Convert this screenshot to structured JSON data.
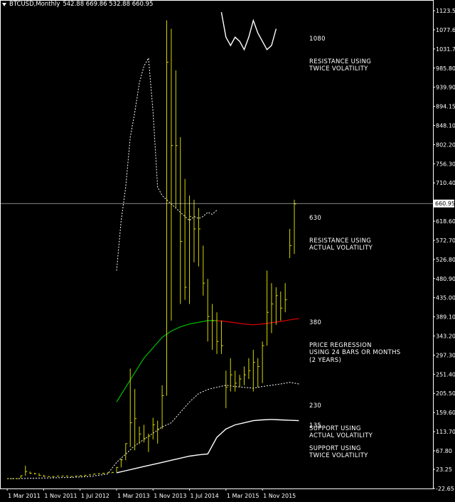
{
  "header": {
    "symbol": "BTCUSD,Monthly",
    "ohlc": "542.88 669.86 532.88 660.95"
  },
  "annotations": [
    {
      "value": "1080",
      "text": "RESISTANCE USING\nTWICE VOLATILITY"
    },
    {
      "value": "630",
      "text": "RESISTANCE USING\nACTUAL VOLATILITY"
    },
    {
      "value": "380",
      "text": "PRICE REGRESSION\nUSING 24 BARS OR MONTHS\n(2 YEARS)"
    },
    {
      "value": "230",
      "text": "SUPPORT USING\nACTUAL VOLATILITY"
    },
    {
      "value": "135",
      "text": "SUPPORT USING\nTWICE VOLATILITY"
    }
  ],
  "colors": {
    "background": "#000000",
    "bars": "#d6d600",
    "dotted_band": "#ffffff",
    "outer_band": "#ffffff",
    "regression_green": "#00c000",
    "regression_red": "#e00000",
    "price_line": "#ffffff"
  },
  "chart_data": {
    "type": "ohlc",
    "y_ticks": [
      "1123.55",
      "1077.60",
      "1031.70",
      "985.80",
      "939.90",
      "894.15",
      "848.10",
      "802.20",
      "756.30",
      "710.40",
      "618.60",
      "572.70",
      "526.80",
      "480.90",
      "435.00",
      "389.10",
      "343.20",
      "297.30",
      "251.40",
      "205.50",
      "159.60",
      "113.70",
      "67.80",
      "23.25",
      "-22.65"
    ],
    "x_ticks": [
      "1 Mar 2011",
      "1 Nov 2011",
      "1 Jul 2012",
      "1 Mar 2013",
      "1 Nov 2013",
      "1 Jul 2014",
      "1 Mar 2015",
      "1 Nov 2015"
    ],
    "ylim": [
      -22.65,
      1123.55
    ],
    "xlim": [
      -0.8,
      63.0
    ],
    "current_price": "660.95",
    "bars": [
      [
        0,
        1,
        1,
        1
      ],
      [
        1,
        1,
        1,
        1
      ],
      [
        2,
        2,
        1,
        1
      ],
      [
        3,
        9,
        2,
        8
      ],
      [
        4,
        32,
        8,
        18
      ],
      [
        5,
        18,
        12,
        14
      ],
      [
        6,
        15,
        11,
        13
      ],
      [
        7,
        14,
        7,
        9
      ],
      [
        8,
        10,
        5,
        7
      ],
      [
        9,
        7,
        5,
        6
      ],
      [
        10,
        7,
        4,
        6
      ],
      [
        11,
        8,
        6,
        7
      ],
      [
        12,
        8,
        6,
        7
      ],
      [
        13,
        8,
        6,
        7
      ],
      [
        14,
        7,
        5,
        6
      ],
      [
        15,
        8,
        6,
        7
      ],
      [
        16,
        9,
        6,
        8
      ],
      [
        17,
        10,
        7,
        9
      ],
      [
        18,
        11,
        9,
        10
      ],
      [
        19,
        13,
        10,
        12
      ],
      [
        20,
        14,
        12,
        13
      ],
      [
        21,
        15,
        12,
        14
      ],
      [
        22,
        16,
        14,
        15
      ],
      [
        23,
        17,
        14,
        16
      ],
      [
        24,
        29,
        16,
        28
      ],
      [
        25,
        49,
        28,
        46
      ],
      [
        26,
        86,
        45,
        85
      ],
      [
        27,
        265,
        77,
        135
      ],
      [
        28,
        216,
        69,
        145
      ],
      [
        29,
        126,
        84,
        108
      ],
      [
        30,
        130,
        88,
        97
      ],
      [
        31,
        109,
        65,
        103
      ],
      [
        32,
        147,
        95,
        130
      ],
      [
        33,
        140,
        85,
        120
      ],
      [
        34,
        225,
        120,
        200
      ],
      [
        35,
        1100,
        200,
        1000
      ],
      [
        36,
        1080,
        380,
        800
      ],
      [
        37,
        980,
        650,
        800
      ],
      [
        38,
        820,
        420,
        570
      ],
      [
        39,
        720,
        430,
        460
      ],
      [
        40,
        680,
        420,
        630
      ],
      [
        41,
        670,
        520,
        600
      ],
      [
        42,
        650,
        510,
        600
      ],
      [
        43,
        560,
        440,
        470
      ],
      [
        44,
        480,
        330,
        390
      ],
      [
        45,
        420,
        310,
        380
      ],
      [
        46,
        400,
        300,
        330
      ],
      [
        47,
        380,
        300,
        320
      ],
      [
        48,
        260,
        170,
        220
      ],
      [
        49,
        290,
        210,
        250
      ],
      [
        50,
        260,
        210,
        230
      ],
      [
        51,
        250,
        220,
        240
      ],
      [
        52,
        270,
        225,
        250
      ],
      [
        53,
        290,
        240,
        260
      ],
      [
        54,
        310,
        210,
        280
      ],
      [
        55,
        290,
        220,
        270
      ],
      [
        56,
        330,
        230,
        320
      ],
      [
        57,
        500,
        320,
        400
      ],
      [
        58,
        470,
        350,
        420
      ],
      [
        59,
        460,
        370,
        440
      ],
      [
        60,
        450,
        380,
        410
      ],
      [
        61,
        470,
        400,
        430
      ],
      [
        62,
        600,
        530,
        560
      ],
      [
        63,
        670,
        540,
        660
      ]
    ],
    "outer_upper_band": [
      [
        47,
        1120
      ],
      [
        48,
        1060
      ],
      [
        49,
        1040
      ],
      [
        50,
        1060
      ],
      [
        51,
        1050
      ],
      [
        52,
        1030
      ],
      [
        53,
        1060
      ],
      [
        54,
        1100
      ],
      [
        55,
        1070
      ],
      [
        56,
        1050
      ],
      [
        57,
        1030
      ],
      [
        58,
        1040
      ],
      [
        59,
        1080
      ]
    ],
    "upper_band_dotted": [
      [
        24,
        500
      ],
      [
        25,
        620
      ],
      [
        26,
        700
      ],
      [
        27,
        820
      ],
      [
        28,
        880
      ],
      [
        29,
        950
      ],
      [
        30,
        990
      ],
      [
        31,
        1010
      ],
      [
        32,
        880
      ],
      [
        33,
        700
      ],
      [
        34,
        680
      ],
      [
        35,
        670
      ],
      [
        36,
        660
      ],
      [
        37,
        650
      ],
      [
        38,
        640
      ],
      [
        39,
        630
      ],
      [
        40,
        620
      ],
      [
        41,
        630
      ],
      [
        42,
        625
      ],
      [
        43,
        630
      ],
      [
        44,
        640
      ],
      [
        45,
        635
      ],
      [
        46,
        645
      ]
    ],
    "lower_band_dotted": [
      [
        0,
        1
      ],
      [
        2,
        1
      ],
      [
        6,
        2
      ],
      [
        10,
        3
      ],
      [
        14,
        4
      ],
      [
        18,
        6
      ],
      [
        22,
        12
      ],
      [
        24,
        40
      ],
      [
        26,
        60
      ],
      [
        28,
        80
      ],
      [
        30,
        95
      ],
      [
        32,
        110
      ],
      [
        34,
        125
      ],
      [
        36,
        135
      ],
      [
        38,
        160
      ],
      [
        40,
        185
      ],
      [
        42,
        205
      ],
      [
        44,
        215
      ],
      [
        46,
        220
      ],
      [
        48,
        225
      ],
      [
        50,
        222
      ],
      [
        52,
        220
      ],
      [
        54,
        218
      ],
      [
        56,
        222
      ],
      [
        58,
        225
      ],
      [
        60,
        228
      ],
      [
        62,
        232
      ],
      [
        64,
        228
      ]
    ],
    "outer_lower_band": [
      [
        24,
        15
      ],
      [
        26,
        20
      ],
      [
        28,
        25
      ],
      [
        30,
        30
      ],
      [
        32,
        35
      ],
      [
        34,
        40
      ],
      [
        36,
        45
      ],
      [
        38,
        50
      ],
      [
        40,
        55
      ],
      [
        42,
        58
      ],
      [
        44,
        60
      ],
      [
        46,
        100
      ],
      [
        48,
        120
      ],
      [
        50,
        130
      ],
      [
        52,
        135
      ],
      [
        54,
        140
      ],
      [
        56,
        142
      ],
      [
        58,
        143
      ],
      [
        60,
        142
      ],
      [
        62,
        141
      ],
      [
        64,
        140
      ]
    ],
    "regression_green": [
      [
        24,
        185
      ],
      [
        26,
        220
      ],
      [
        28,
        255
      ],
      [
        30,
        290
      ],
      [
        32,
        315
      ],
      [
        34,
        340
      ],
      [
        36,
        355
      ],
      [
        38,
        365
      ],
      [
        40,
        372
      ],
      [
        42,
        376
      ],
      [
        44,
        380
      ],
      [
        46,
        380
      ]
    ],
    "regression_red": [
      [
        46,
        380
      ],
      [
        48,
        378
      ],
      [
        50,
        375
      ],
      [
        52,
        372
      ],
      [
        54,
        370
      ],
      [
        56,
        372
      ],
      [
        58,
        375
      ],
      [
        60,
        378
      ],
      [
        62,
        382
      ],
      [
        64,
        385
      ]
    ]
  }
}
